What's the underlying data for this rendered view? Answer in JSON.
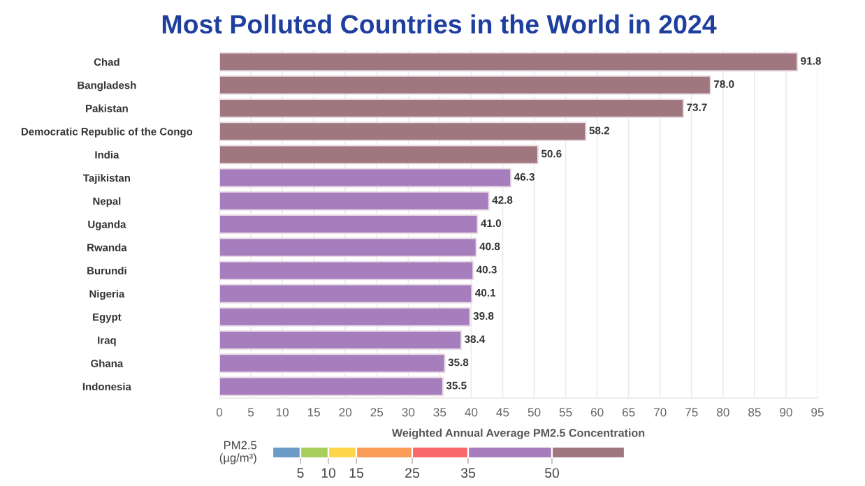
{
  "chart_data": [
    {
      "type": "bar",
      "orientation": "horizontal",
      "title": "Most Polluted Countries in the World in 2024",
      "xlabel": "Weighted Annual Average PM2.5 Concentration",
      "categories": [
        "Chad",
        "Bangladesh",
        "Pakistan",
        "Democratic Republic of the Congo",
        "India",
        "Tajikistan",
        "Nepal",
        "Uganda",
        "Rwanda",
        "Burundi",
        "Nigeria",
        "Egypt",
        "Iraq",
        "Ghana",
        "Indonesia"
      ],
      "values": [
        91.8,
        78.0,
        73.7,
        58.2,
        50.6,
        46.3,
        42.8,
        41.0,
        40.8,
        40.3,
        40.1,
        39.8,
        38.4,
        35.8,
        35.5
      ],
      "value_labels": [
        "91.8",
        "78.0",
        "73.7",
        "58.2",
        "50.6",
        "46.3",
        "42.8",
        "41.0",
        "40.8",
        "40.3",
        "40.1",
        "39.8",
        "38.4",
        "35.8",
        "35.5"
      ],
      "colors": [
        "#a1777f",
        "#a1777f",
        "#a1777f",
        "#a1777f",
        "#a1777f",
        "#a67dbd",
        "#a67dbd",
        "#a67dbd",
        "#a67dbd",
        "#a67dbd",
        "#a67dbd",
        "#a67dbd",
        "#a67dbd",
        "#a67dbd",
        "#a67dbd"
      ],
      "xlim": [
        0,
        95
      ],
      "xticks": [
        0,
        5,
        10,
        15,
        20,
        25,
        30,
        35,
        40,
        45,
        50,
        55,
        60,
        65,
        70,
        75,
        80,
        85,
        90,
        95
      ],
      "grid": "x"
    },
    {
      "type": "bar",
      "orientation": "horizontal",
      "stacked": true,
      "ylabel": "PM2.5\n(µg/m³)",
      "categories": [
        null
      ],
      "series": [
        {
          "color": "#6d9bc8",
          "values": [
            5
          ]
        },
        {
          "color": "#a6cf5d",
          "values": [
            5
          ]
        },
        {
          "color": "#fdd649",
          "values": [
            5
          ]
        },
        {
          "color": "#fb9b58",
          "values": [
            10
          ]
        },
        {
          "color": "#f8676a",
          "values": [
            10
          ]
        },
        {
          "color": "#a67dbd",
          "values": [
            15
          ]
        },
        {
          "color": "#a1777f",
          "values": [
            13
          ]
        }
      ],
      "xlim": [
        0,
        63
      ],
      "xticks": [
        5,
        10,
        15,
        25,
        35,
        50
      ]
    }
  ]
}
